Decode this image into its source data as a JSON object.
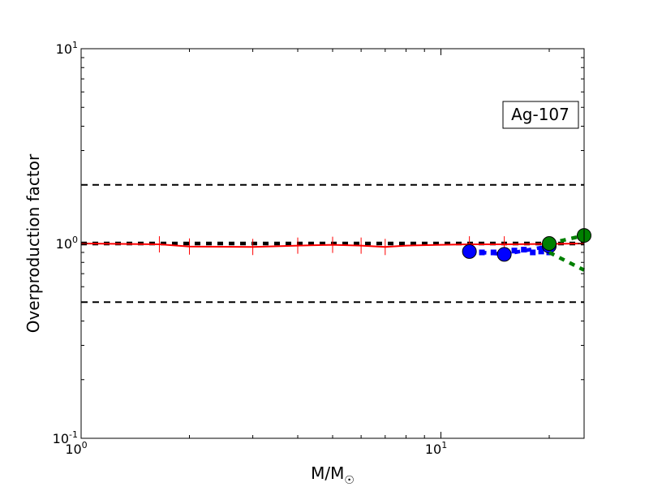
{
  "chart_data": {
    "type": "line",
    "title": "",
    "xlabel": "M/M",
    "xlabel_sub": "☉",
    "ylabel": "Overproduction factor",
    "xscale": "log",
    "yscale": "log",
    "xlim": [
      1,
      25
    ],
    "ylim": [
      0.1,
      10
    ],
    "x_ticks": [
      {
        "value": 1,
        "base": "10",
        "exp": "0"
      },
      {
        "value": 10,
        "base": "10",
        "exp": "1"
      }
    ],
    "y_ticks": [
      {
        "value": 0.1,
        "base": "10",
        "exp": "-1"
      },
      {
        "value": 1,
        "base": "10",
        "exp": "0"
      },
      {
        "value": 10,
        "base": "10",
        "exp": "1"
      }
    ],
    "annotation": "Ag-107",
    "annotation_position": "top-right",
    "reference_lines": [
      {
        "y": 2.0,
        "style": "dashed",
        "color": "#000000"
      },
      {
        "y": 1.0,
        "style": "dotted-thick",
        "color": "#000000"
      },
      {
        "y": 0.5,
        "style": "dashed",
        "color": "#000000"
      }
    ],
    "series": [
      {
        "color": "#ff0000",
        "style": "solid",
        "x": [
          1,
          1.65,
          2,
          3,
          4,
          5,
          6,
          7,
          8,
          10,
          12,
          15,
          20,
          25
        ],
        "y": [
          1.0,
          0.99,
          0.965,
          0.96,
          0.975,
          0.985,
          0.975,
          0.96,
          0.975,
          0.985,
          0.99,
          0.99,
          0.995,
          1.0
        ],
        "error_x": [
          1.65,
          2,
          3,
          4,
          5,
          6,
          7,
          12,
          15
        ],
        "error_y": [
          0.99,
          0.965,
          0.96,
          0.975,
          0.985,
          0.975,
          0.96,
          0.99,
          0.99
        ]
      },
      {
        "color": "#0000ff",
        "style": "dotted-thick",
        "marker": "circle",
        "x": [
          12,
          15,
          20
        ],
        "y": [
          0.91,
          0.88,
          0.97
        ],
        "extra_points": [
          {
            "x": 13,
            "y": 0.9
          },
          {
            "x": 14,
            "y": 0.9
          },
          {
            "x": 16,
            "y": 0.92
          },
          {
            "x": 17,
            "y": 0.93
          },
          {
            "x": 18,
            "y": 0.9
          },
          {
            "x": 19,
            "y": 0.91
          },
          {
            "x": 20,
            "y": 0.9
          }
        ]
      },
      {
        "color": "#008000",
        "style": "dotted-thick",
        "marker": "circle",
        "x": [
          20,
          25
        ],
        "y": [
          1.0,
          1.1
        ],
        "branch": {
          "x": [
            20,
            25
          ],
          "y": [
            0.9,
            0.73
          ]
        }
      }
    ],
    "grid": false
  }
}
